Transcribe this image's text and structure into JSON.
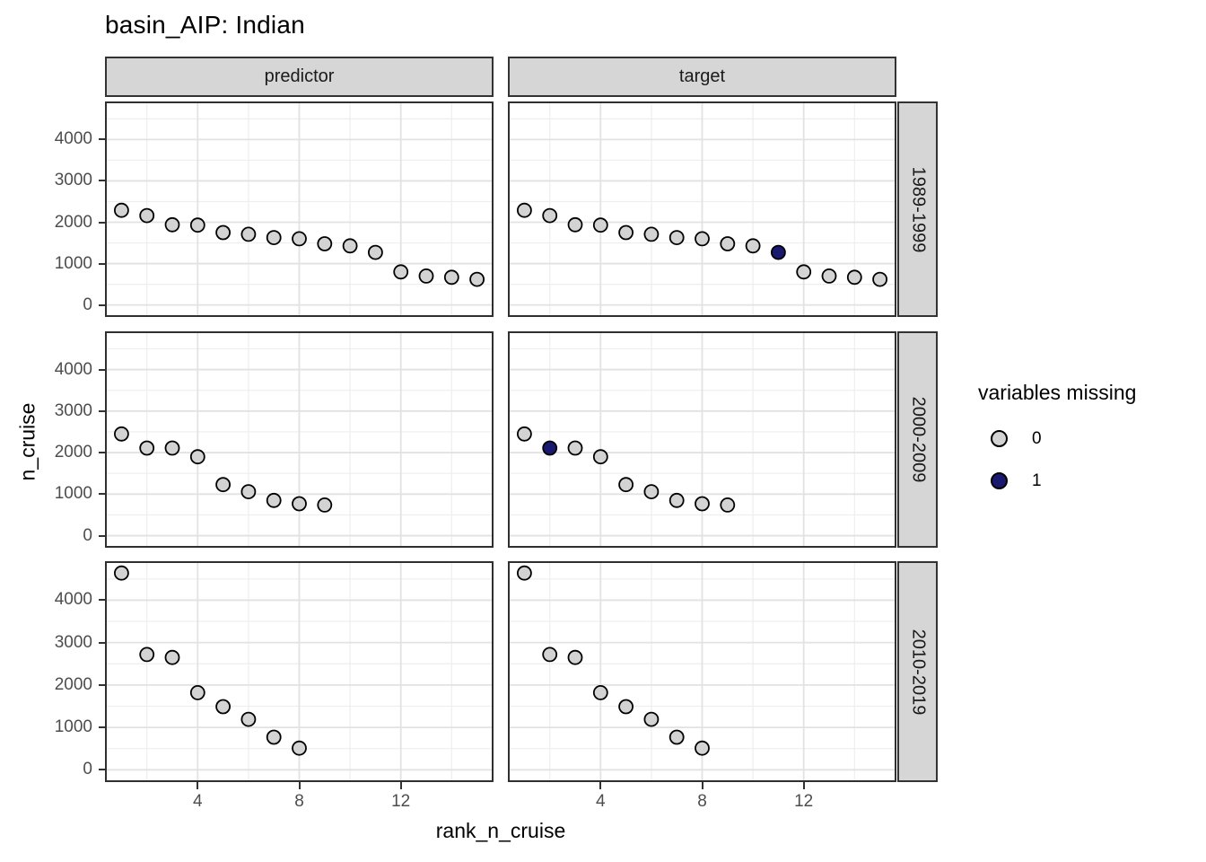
{
  "title": "basin_AIP: Indian",
  "axes": {
    "x_label": "rank_n_cruise",
    "y_label": "n_cruise",
    "x_ticks": [
      4,
      8,
      12
    ],
    "y_ticks": [
      0,
      1000,
      2000,
      3000,
      4000
    ]
  },
  "legend": {
    "title": "variables missing",
    "items": [
      {
        "label": "0",
        "color": "#d3d3d3"
      },
      {
        "label": "1",
        "color": "#191970"
      }
    ]
  },
  "colors": {
    "point_fill_missing0": "#d3d3d3",
    "point_fill_missing1": "#191970",
    "point_stroke": "#000000",
    "strip_background": "#d6d6d6",
    "panel_border": "#2f2f2f",
    "grid_major": "#e2e2e2",
    "grid_minor": "#eeeeee",
    "tick_label": "#4d4d4d"
  },
  "chart_data": {
    "type": "scatter",
    "title": "basin_AIP: Indian",
    "xlabel": "rank_n_cruise",
    "ylabel": "n_cruise",
    "facet_columns": [
      "predictor",
      "target"
    ],
    "facet_rows": [
      "1989-1999",
      "2000-2009",
      "2010-2019"
    ],
    "xlim": [
      0.35,
      15.65
    ],
    "ylim": [
      -290,
      4920
    ],
    "x_major_ticks": [
      4,
      8,
      12
    ],
    "x_minor_gridlines": [
      2,
      6,
      10,
      14
    ],
    "y_major_ticks": [
      0,
      1000,
      2000,
      3000,
      4000
    ],
    "y_minor_gridlines": [
      500,
      1500,
      2500,
      3500,
      4500
    ],
    "grid": true,
    "legend_title": "variables missing",
    "legend_position": "right",
    "panels": [
      {
        "row": "1989-1999",
        "col": "predictor",
        "ranks": [
          1,
          2,
          3,
          4,
          5,
          6,
          7,
          8,
          9,
          10,
          11,
          12,
          13,
          14,
          15
        ],
        "values": [
          2290,
          2160,
          1940,
          1930,
          1750,
          1710,
          1630,
          1600,
          1480,
          1430,
          1270,
          800,
          700,
          670,
          620
        ],
        "missing": [
          0,
          0,
          0,
          0,
          0,
          0,
          0,
          0,
          0,
          0,
          0,
          0,
          0,
          0,
          0
        ]
      },
      {
        "row": "1989-1999",
        "col": "target",
        "ranks": [
          1,
          2,
          3,
          4,
          5,
          6,
          7,
          8,
          9,
          10,
          11,
          12,
          13,
          14,
          15
        ],
        "values": [
          2290,
          2160,
          1940,
          1930,
          1750,
          1710,
          1630,
          1600,
          1480,
          1430,
          1270,
          800,
          700,
          670,
          620
        ],
        "missing": [
          0,
          0,
          0,
          0,
          0,
          0,
          0,
          0,
          0,
          0,
          1,
          0,
          0,
          0,
          0
        ]
      },
      {
        "row": "2000-2009",
        "col": "predictor",
        "ranks": [
          1,
          2,
          3,
          4,
          5,
          6,
          7,
          8,
          9
        ],
        "values": [
          2450,
          2110,
          2110,
          1900,
          1230,
          1060,
          850,
          770,
          740
        ],
        "missing": [
          0,
          0,
          0,
          0,
          0,
          0,
          0,
          0,
          0
        ]
      },
      {
        "row": "2000-2009",
        "col": "target",
        "ranks": [
          1,
          2,
          3,
          4,
          5,
          6,
          7,
          8,
          9
        ],
        "values": [
          2450,
          2110,
          2110,
          1900,
          1230,
          1060,
          850,
          770,
          740
        ],
        "missing": [
          0,
          1,
          0,
          0,
          0,
          0,
          0,
          0,
          0
        ]
      },
      {
        "row": "2010-2019",
        "col": "predictor",
        "ranks": [
          1,
          2,
          3,
          4,
          5,
          6,
          7,
          8
        ],
        "values": [
          4640,
          2720,
          2650,
          1820,
          1490,
          1190,
          770,
          510
        ],
        "missing": [
          0,
          0,
          0,
          0,
          0,
          0,
          0,
          0
        ]
      },
      {
        "row": "2010-2019",
        "col": "target",
        "ranks": [
          1,
          2,
          3,
          4,
          5,
          6,
          7,
          8
        ],
        "values": [
          4640,
          2720,
          2650,
          1820,
          1490,
          1190,
          770,
          510
        ],
        "missing": [
          0,
          0,
          0,
          0,
          0,
          0,
          0,
          0
        ]
      }
    ]
  }
}
